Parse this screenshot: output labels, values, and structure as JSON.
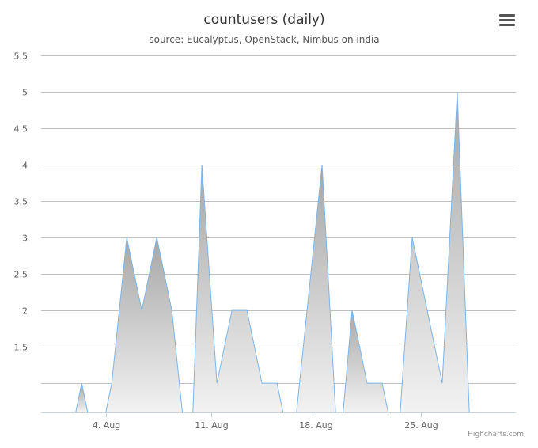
{
  "chart_data": {
    "type": "area",
    "title": "countusers (daily)",
    "subtitle": "source: Eucalyptus, OpenStack, Nimbus on india",
    "credits": "Highcharts.com",
    "ylim": [
      0.6,
      5.5
    ],
    "yticks": [
      "1.5",
      "2",
      "2.5",
      "3",
      "3.5",
      "4",
      "4.5",
      "5",
      "5.5"
    ],
    "ytick_values": [
      1.5,
      2,
      2.5,
      3,
      3.5,
      4,
      4.5,
      5,
      5.5
    ],
    "xtick_labels": [
      "4. Aug",
      "11. Aug",
      "18. Aug",
      "25. Aug"
    ],
    "xtick_days": [
      4,
      11,
      18,
      25
    ],
    "xlim_days": [
      -0.3,
      31.3
    ],
    "grid": true,
    "fill_gradient": [
      "#a6a6a6",
      "#f2f2f2"
    ],
    "line_color": "#7cb5ec",
    "segments": [
      {
        "x": [
          2.0,
          2.4,
          2.8
        ],
        "y": [
          0.6,
          1.0,
          0.6
        ]
      },
      {
        "x": [
          4.0,
          4.4,
          5.4,
          6.4,
          7.4,
          8.4,
          9.1
        ],
        "y": [
          0.6,
          1.0,
          3.0,
          2.0,
          3.0,
          2.0,
          0.6
        ]
      },
      {
        "x": [
          9.8,
          10.4,
          11.4,
          12.4,
          13.4,
          14.4,
          15.4,
          15.8
        ],
        "y": [
          0.6,
          4.0,
          1.0,
          2.0,
          2.0,
          1.0,
          1.0,
          0.6
        ]
      },
      {
        "x": [
          16.7,
          18.4,
          19.3
        ],
        "y": [
          0.6,
          4.0,
          0.6
        ]
      },
      {
        "x": [
          19.8,
          20.4,
          21.4,
          22.4,
          22.8
        ],
        "y": [
          0.6,
          2.0,
          1.0,
          1.0,
          0.6
        ]
      },
      {
        "x": [
          23.6,
          24.4,
          25.4,
          26.4,
          27.4,
          28.2
        ],
        "y": [
          0.6,
          3.0,
          2.0,
          1.0,
          5.0,
          0.6
        ]
      }
    ]
  },
  "ui": {
    "menu_icon": "hamburger-icon"
  }
}
